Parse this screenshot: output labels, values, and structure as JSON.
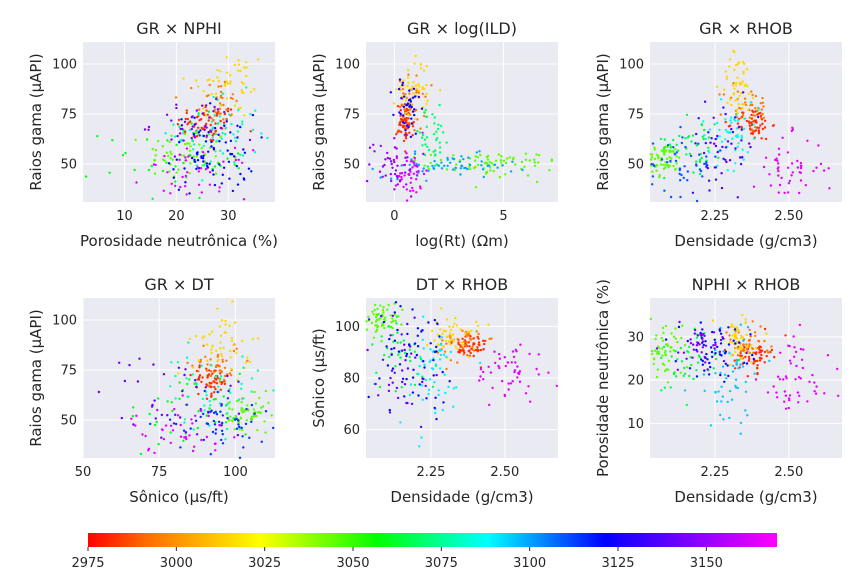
{
  "figure": {
    "background": "#ffffff",
    "axes_background": "#eaeaf2",
    "grid_color": "#ffffff",
    "colormap": "gist_rainbow_r"
  },
  "chart_data": [
    {
      "type": "scatter",
      "title": "GR × NPHI",
      "xlabel": "Porosidade neutrônica (%)",
      "ylabel": "Raios gama (μAPI)",
      "xlim": [
        2,
        39
      ],
      "ylim": [
        31,
        111
      ],
      "xticks": [
        10,
        20,
        30
      ],
      "yticks": [
        50,
        75,
        100
      ],
      "grid": true,
      "clusters": [
        {
          "depth": 2982,
          "x": [
            26,
            3
          ],
          "y": [
            70,
            5
          ],
          "n": 60
        },
        {
          "depth": 2995,
          "x": [
            28,
            2
          ],
          "y": [
            80,
            7
          ],
          "n": 40
        },
        {
          "depth": 3015,
          "x": [
            30,
            4
          ],
          "y": [
            90,
            9
          ],
          "n": 50
        },
        {
          "depth": 3045,
          "x": [
            22,
            4
          ],
          "y": [
            55,
            7
          ],
          "n": 60
        },
        {
          "depth": 3060,
          "x": [
            20,
            7
          ],
          "y": [
            52,
            10
          ],
          "n": 40
        },
        {
          "depth": 3080,
          "x": [
            28,
            4
          ],
          "y": [
            65,
            10
          ],
          "n": 60
        },
        {
          "depth": 3120,
          "x": [
            27,
            4
          ],
          "y": [
            55,
            10
          ],
          "n": 80
        },
        {
          "depth": 3145,
          "x": [
            23,
            4
          ],
          "y": [
            70,
            7
          ],
          "n": 40
        },
        {
          "depth": 3165,
          "x": [
            24,
            5
          ],
          "y": [
            45,
            6
          ],
          "n": 40
        }
      ]
    },
    {
      "type": "scatter",
      "title": "GR × log(ILD)",
      "xlabel": "log(Rt) (Ωm)",
      "ylabel": "Raios gama (μAPI)",
      "xlim": [
        -1.3,
        7.5
      ],
      "ylim": [
        31,
        111
      ],
      "xticks": [
        0,
        5
      ],
      "yticks": [
        50,
        75,
        100
      ],
      "grid": true,
      "clusters": [
        {
          "depth": 2982,
          "x": [
            0.5,
            0.2
          ],
          "y": [
            70,
            5
          ],
          "n": 60
        },
        {
          "depth": 2995,
          "x": [
            0.8,
            0.3
          ],
          "y": [
            80,
            7
          ],
          "n": 40
        },
        {
          "depth": 3015,
          "x": [
            0.9,
            0.4
          ],
          "y": [
            88,
            8
          ],
          "n": 50
        },
        {
          "depth": 3045,
          "x": [
            4.5,
            1.5
          ],
          "y": [
            50,
            3
          ],
          "n": 80
        },
        {
          "depth": 3070,
          "x": [
            1.7,
            0.5
          ],
          "y": [
            62,
            8
          ],
          "n": 40
        },
        {
          "depth": 3100,
          "x": [
            2.5,
            1.5
          ],
          "y": [
            49,
            3
          ],
          "n": 60
        },
        {
          "depth": 3125,
          "x": [
            0.6,
            0.3
          ],
          "y": [
            78,
            8
          ],
          "n": 40
        },
        {
          "depth": 3150,
          "x": [
            0.0,
            0.6
          ],
          "y": [
            50,
            8
          ],
          "n": 50
        },
        {
          "depth": 3165,
          "x": [
            0.8,
            0.3
          ],
          "y": [
            45,
            6
          ],
          "n": 40
        }
      ]
    },
    {
      "type": "scatter",
      "title": "GR × RHOB",
      "xlabel": "Densidade (g/cm3)",
      "ylabel": "Raios gama (μAPI)",
      "xlim": [
        2.03,
        2.68
      ],
      "ylim": [
        31,
        111
      ],
      "xticks": [
        2.25,
        2.5
      ],
      "yticks": [
        50,
        75,
        100
      ],
      "grid": true,
      "clusters": [
        {
          "depth": 2982,
          "x": [
            2.38,
            0.03
          ],
          "y": [
            70,
            4
          ],
          "n": 60
        },
        {
          "depth": 2995,
          "x": [
            2.36,
            0.04
          ],
          "y": [
            78,
            6
          ],
          "n": 40
        },
        {
          "depth": 3015,
          "x": [
            2.33,
            0.03
          ],
          "y": [
            90,
            8
          ],
          "n": 50
        },
        {
          "depth": 3045,
          "x": [
            2.08,
            0.03
          ],
          "y": [
            52,
            4
          ],
          "n": 60
        },
        {
          "depth": 3065,
          "x": [
            2.18,
            0.05
          ],
          "y": [
            62,
            8
          ],
          "n": 40
        },
        {
          "depth": 3085,
          "x": [
            2.3,
            0.05
          ],
          "y": [
            65,
            8
          ],
          "n": 50
        },
        {
          "depth": 3110,
          "x": [
            2.15,
            0.06
          ],
          "y": [
            50,
            8
          ],
          "n": 50
        },
        {
          "depth": 3135,
          "x": [
            2.28,
            0.06
          ],
          "y": [
            60,
            10
          ],
          "n": 50
        },
        {
          "depth": 3165,
          "x": [
            2.5,
            0.06
          ],
          "y": [
            48,
            8
          ],
          "n": 50
        }
      ]
    },
    {
      "type": "scatter",
      "title": "GR × DT",
      "xlabel": "Sônico (μs/ft)",
      "ylabel": "Raios gama (μAPI)",
      "xlim": [
        50,
        113
      ],
      "ylim": [
        31,
        111
      ],
      "xticks": [
        50,
        75,
        100
      ],
      "yticks": [
        50,
        75,
        100
      ],
      "grid": true,
      "clusters": [
        {
          "depth": 2982,
          "x": [
            92,
            3
          ],
          "y": [
            70,
            4
          ],
          "n": 60
        },
        {
          "depth": 2995,
          "x": [
            94,
            4
          ],
          "y": [
            78,
            6
          ],
          "n": 40
        },
        {
          "depth": 3015,
          "x": [
            96,
            5
          ],
          "y": [
            88,
            8
          ],
          "n": 50
        },
        {
          "depth": 3045,
          "x": [
            104,
            4
          ],
          "y": [
            52,
            5
          ],
          "n": 60
        },
        {
          "depth": 3060,
          "x": [
            85,
            10
          ],
          "y": [
            55,
            10
          ],
          "n": 40
        },
        {
          "depth": 3080,
          "x": [
            92,
            8
          ],
          "y": [
            65,
            10
          ],
          "n": 50
        },
        {
          "depth": 3115,
          "x": [
            96,
            8
          ],
          "y": [
            50,
            8
          ],
          "n": 60
        },
        {
          "depth": 3140,
          "x": [
            80,
            12
          ],
          "y": [
            60,
            12
          ],
          "n": 40
        },
        {
          "depth": 3165,
          "x": [
            82,
            8
          ],
          "y": [
            45,
            6
          ],
          "n": 40
        }
      ]
    },
    {
      "type": "scatter",
      "title": "DT × RHOB",
      "xlabel": "Densidade (g/cm3)",
      "ylabel": "Sônico (μs/ft)",
      "xlim": [
        2.03,
        2.68
      ],
      "ylim": [
        49,
        111
      ],
      "xticks": [
        2.25,
        2.5
      ],
      "yticks": [
        60,
        80,
        100
      ],
      "grid": true,
      "clusters": [
        {
          "depth": 2982,
          "x": [
            2.38,
            0.03
          ],
          "y": [
            92,
            3
          ],
          "n": 60
        },
        {
          "depth": 2995,
          "x": [
            2.35,
            0.04
          ],
          "y": [
            94,
            4
          ],
          "n": 40
        },
        {
          "depth": 3015,
          "x": [
            2.33,
            0.04
          ],
          "y": [
            96,
            4
          ],
          "n": 50
        },
        {
          "depth": 3045,
          "x": [
            2.08,
            0.03
          ],
          "y": [
            103,
            3
          ],
          "n": 60
        },
        {
          "depth": 3065,
          "x": [
            2.15,
            0.06
          ],
          "y": [
            90,
            8
          ],
          "n": 40
        },
        {
          "depth": 3090,
          "x": [
            2.25,
            0.06
          ],
          "y": [
            80,
            10
          ],
          "n": 50
        },
        {
          "depth": 3120,
          "x": [
            2.2,
            0.06
          ],
          "y": [
            90,
            10
          ],
          "n": 60
        },
        {
          "depth": 3140,
          "x": [
            2.15,
            0.07
          ],
          "y": [
            85,
            12
          ],
          "n": 40
        },
        {
          "depth": 3165,
          "x": [
            2.52,
            0.06
          ],
          "y": [
            82,
            6
          ],
          "n": 50
        }
      ]
    },
    {
      "type": "scatter",
      "title": "NPHI × RHOB",
      "xlabel": "Densidade (g/cm3)",
      "ylabel": "Porosidade neutrônica (%)",
      "xlim": [
        2.03,
        2.68
      ],
      "ylim": [
        2,
        39
      ],
      "xticks": [
        2.25,
        2.5
      ],
      "yticks": [
        10,
        20,
        30
      ],
      "grid": true,
      "clusters": [
        {
          "depth": 2982,
          "x": [
            2.38,
            0.03
          ],
          "y": [
            26,
            2
          ],
          "n": 60
        },
        {
          "depth": 2995,
          "x": [
            2.35,
            0.04
          ],
          "y": [
            28,
            2
          ],
          "n": 40
        },
        {
          "depth": 3015,
          "x": [
            2.33,
            0.04
          ],
          "y": [
            29,
            3
          ],
          "n": 50
        },
        {
          "depth": 3045,
          "x": [
            2.08,
            0.03
          ],
          "y": [
            27,
            3
          ],
          "n": 60
        },
        {
          "depth": 3065,
          "x": [
            2.15,
            0.06
          ],
          "y": [
            24,
            4
          ],
          "n": 40
        },
        {
          "depth": 3095,
          "x": [
            2.3,
            0.06
          ],
          "y": [
            20,
            6
          ],
          "n": 50
        },
        {
          "depth": 3120,
          "x": [
            2.25,
            0.06
          ],
          "y": [
            27,
            3
          ],
          "n": 60
        },
        {
          "depth": 3145,
          "x": [
            2.2,
            0.07
          ],
          "y": [
            28,
            3
          ],
          "n": 40
        },
        {
          "depth": 3165,
          "x": [
            2.52,
            0.06
          ],
          "y": [
            20,
            5
          ],
          "n": 50
        }
      ]
    }
  ],
  "colorbar": {
    "min": 2975,
    "max": 3170,
    "ticks": [
      2975,
      3000,
      3025,
      3050,
      3075,
      3100,
      3125,
      3150
    ],
    "colors": [
      "#ff0000",
      "#ff6a00",
      "#ffff00",
      "#00ff00",
      "#00ffff",
      "#0000ff",
      "#ff00ff"
    ]
  }
}
